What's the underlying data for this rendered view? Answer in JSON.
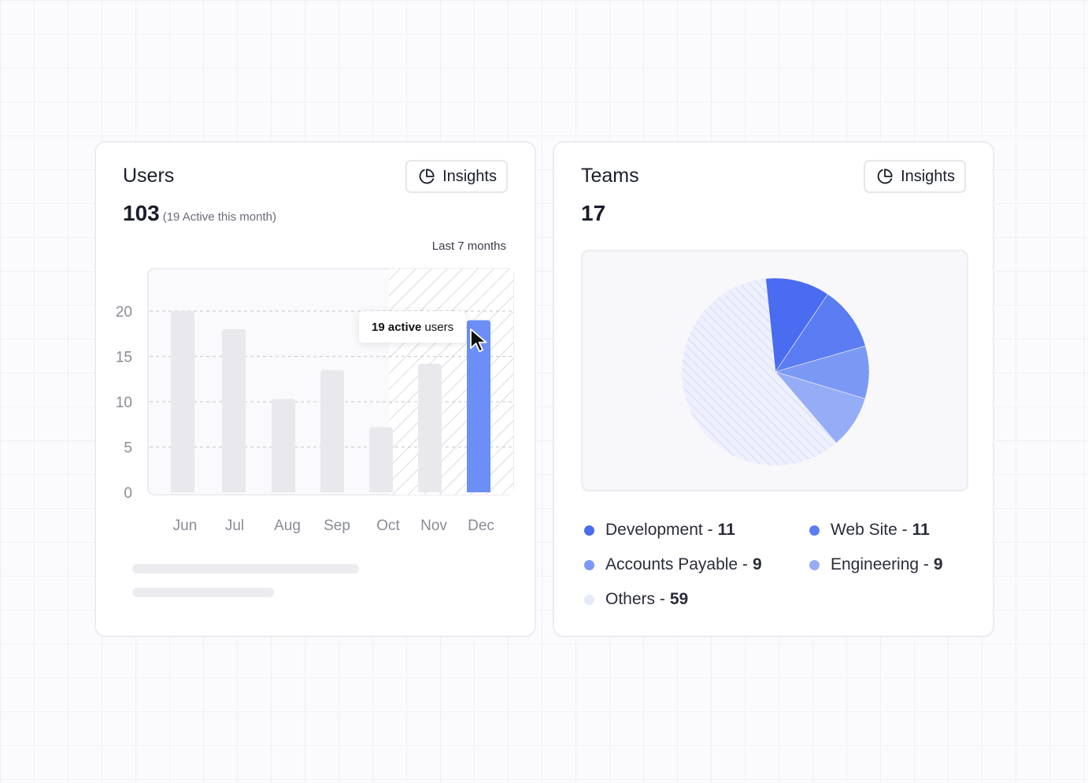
{
  "users_card": {
    "title": "Users",
    "insights_label": "Insights",
    "total": "103",
    "active_note": "(19 Active this month)",
    "range_label": "Last 7 months",
    "tooltip_value": "19 active",
    "tooltip_suffix": "users"
  },
  "teams_card": {
    "title": "Teams",
    "insights_label": "Insights",
    "total": "17",
    "legend": [
      {
        "label": "Development - ",
        "value": "11",
        "color": "#4a6cf0"
      },
      {
        "label": "Web Site - ",
        "value": "11",
        "color": "#5b7cf3"
      },
      {
        "label": "Accounts Payable - ",
        "value": "9",
        "color": "#7b98f5"
      },
      {
        "label": "Engineering - ",
        "value": "9",
        "color": "#95adf7"
      },
      {
        "label": "Others - ",
        "value": "59",
        "color": "#e6e9fb"
      }
    ]
  },
  "chart_data": [
    {
      "type": "bar",
      "categories": [
        "Jun",
        "Jul",
        "Aug",
        "Sep",
        "Oct",
        "Nov",
        "Dec"
      ],
      "values": [
        20,
        18,
        10.3,
        13.5,
        7.2,
        14.2,
        19
      ],
      "ylim": [
        0,
        20
      ],
      "yticks": [
        0,
        5,
        10,
        15,
        20
      ],
      "highlight_index": 6,
      "bar_color": "#e9e8ec",
      "highlight_color": "#6c8ef7"
    },
    {
      "type": "pie",
      "labels": [
        "Development",
        "Web Site",
        "Accounts Payable",
        "Engineering",
        "Others"
      ],
      "values": [
        11,
        11,
        9,
        9,
        59
      ],
      "colors": [
        "#4a6cf0",
        "#5b7cf3",
        "#7b98f5",
        "#95adf7",
        "#e6e9fb"
      ]
    }
  ]
}
